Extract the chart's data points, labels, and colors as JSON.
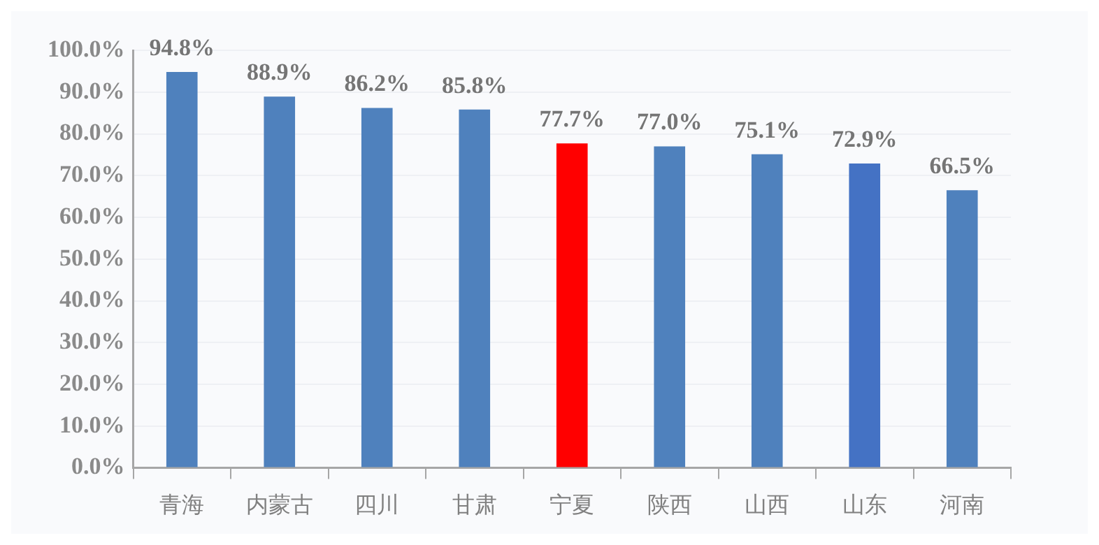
{
  "chart_data": {
    "type": "bar",
    "categories": [
      "青海",
      "内蒙古",
      "四川",
      "甘肃",
      "宁夏",
      "陕西",
      "山西",
      "山东",
      "河南"
    ],
    "values": [
      94.8,
      88.9,
      86.2,
      85.8,
      77.7,
      77.0,
      75.1,
      72.9,
      66.5
    ],
    "colors": [
      "#4f81bd",
      "#4f81bd",
      "#4f81bd",
      "#4f81bd",
      "#ff0000",
      "#4f81bd",
      "#4f81bd",
      "#4472c4",
      "#4f81bd"
    ],
    "value_labels": [
      "94.8%",
      "88.9%",
      "86.2%",
      "85.8%",
      "77.7%",
      "77.0%",
      "75.1%",
      "72.9%",
      "66.5%"
    ],
    "ylim": [
      0,
      100
    ],
    "yticks": [
      {
        "value": 0,
        "label": "0.0%"
      },
      {
        "value": 10,
        "label": "10.0%"
      },
      {
        "value": 20,
        "label": "20.0%"
      },
      {
        "value": 30,
        "label": "30.0%"
      },
      {
        "value": 40,
        "label": "40.0%"
      },
      {
        "value": 50,
        "label": "50.0%"
      },
      {
        "value": 60,
        "label": "60.0%"
      },
      {
        "value": 70,
        "label": "70.0%"
      },
      {
        "value": 80,
        "label": "80.0%"
      },
      {
        "value": 90,
        "label": "90.0%"
      },
      {
        "value": 100,
        "label": "100.0%"
      }
    ],
    "grid": "y",
    "legend": false
  }
}
